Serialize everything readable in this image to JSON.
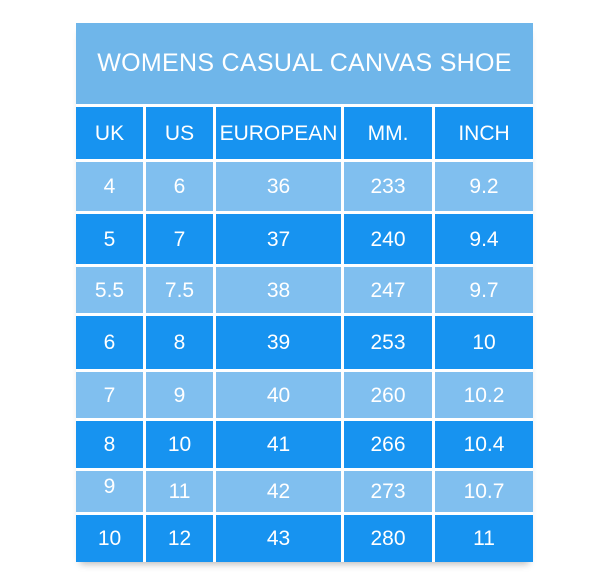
{
  "chart_data": {
    "type": "table",
    "title": "WOMENS CASUAL CANVAS SHOE",
    "columns": [
      "UK",
      "US",
      "EUROPEAN",
      "MM.",
      "INCH"
    ],
    "rows": [
      [
        "4",
        "6",
        "36",
        "233",
        "9.2"
      ],
      [
        "5",
        "7",
        "37",
        "240",
        "9.4"
      ],
      [
        "5.5",
        "7.5",
        "38",
        "247",
        "9.7"
      ],
      [
        "6",
        "8",
        "39",
        "253",
        "10"
      ],
      [
        "7",
        "9",
        "40",
        "260",
        "10.2"
      ],
      [
        "8",
        "10",
        "41",
        "266",
        "10.4"
      ],
      [
        "9",
        "11",
        "42",
        "273",
        "10.7"
      ],
      [
        "10",
        "12",
        "43",
        "280",
        "11"
      ]
    ],
    "layout": {
      "header_position": "top",
      "row_striping": "alternating light/dark blue, first data row light",
      "grid": "white 3px separators between all cells"
    }
  },
  "colors": {
    "title_bg": "#6fb6ea",
    "header_bg": "#1793f0",
    "row_light": "#80bfef",
    "row_bright": "#1793f0",
    "text": "#ffffff",
    "page_bg": "#ffffff"
  }
}
